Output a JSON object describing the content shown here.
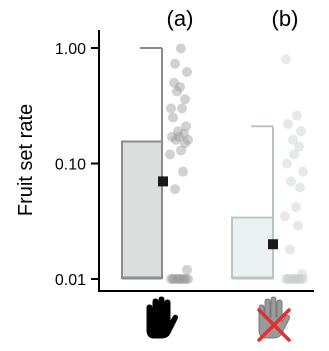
{
  "chart_data": {
    "type": "box",
    "ylabel": "Fruit set rate",
    "yscale": "log",
    "ylim": [
      0.01,
      1.0
    ],
    "yticks": [
      {
        "value": 1.0,
        "label": "1.00"
      },
      {
        "value": 0.1,
        "label": "0.10"
      },
      {
        "value": 0.01,
        "label": "0.01"
      }
    ],
    "groups": [
      {
        "label": "(a)",
        "x_icon": "hand-icon",
        "color_box": "#dcdedd",
        "color_stroke": "#8a8c8b",
        "color_points": "#9a9a9a",
        "box": {
          "q1": 0.0102,
          "q3": 0.155,
          "whisker_low": 0.0102,
          "whisker_high": 1.0
        },
        "mean": 0.07,
        "points": [
          0.01,
          0.01,
          0.01,
          0.01,
          0.01,
          0.01,
          0.01,
          0.01,
          0.01,
          0.01,
          0.012,
          0.06,
          0.085,
          0.12,
          0.13,
          0.15,
          0.16,
          0.16,
          0.17,
          0.17,
          0.18,
          0.19,
          0.21,
          0.25,
          0.3,
          0.3,
          0.36,
          0.42,
          0.46,
          0.5,
          0.62,
          0.73,
          0.99
        ]
      },
      {
        "label": "(b)",
        "x_icon": "crossed-hand-icon",
        "color_box": "#ebf1f1",
        "color_stroke": "#b9c5c4",
        "color_points": "#c9cccc",
        "box": {
          "q1": 0.0102,
          "q3": 0.034,
          "whisker_low": 0.0102,
          "whisker_high": 0.21
        },
        "mean": 0.02,
        "points": [
          0.01,
          0.01,
          0.01,
          0.01,
          0.01,
          0.01,
          0.01,
          0.01,
          0.01,
          0.01,
          0.011,
          0.018,
          0.029,
          0.035,
          0.042,
          0.062,
          0.07,
          0.085,
          0.1,
          0.12,
          0.14,
          0.16,
          0.19,
          0.22,
          0.26,
          0.8
        ]
      }
    ],
    "mean_color": "#1a1a1a",
    "cross_color": "#e03030"
  }
}
